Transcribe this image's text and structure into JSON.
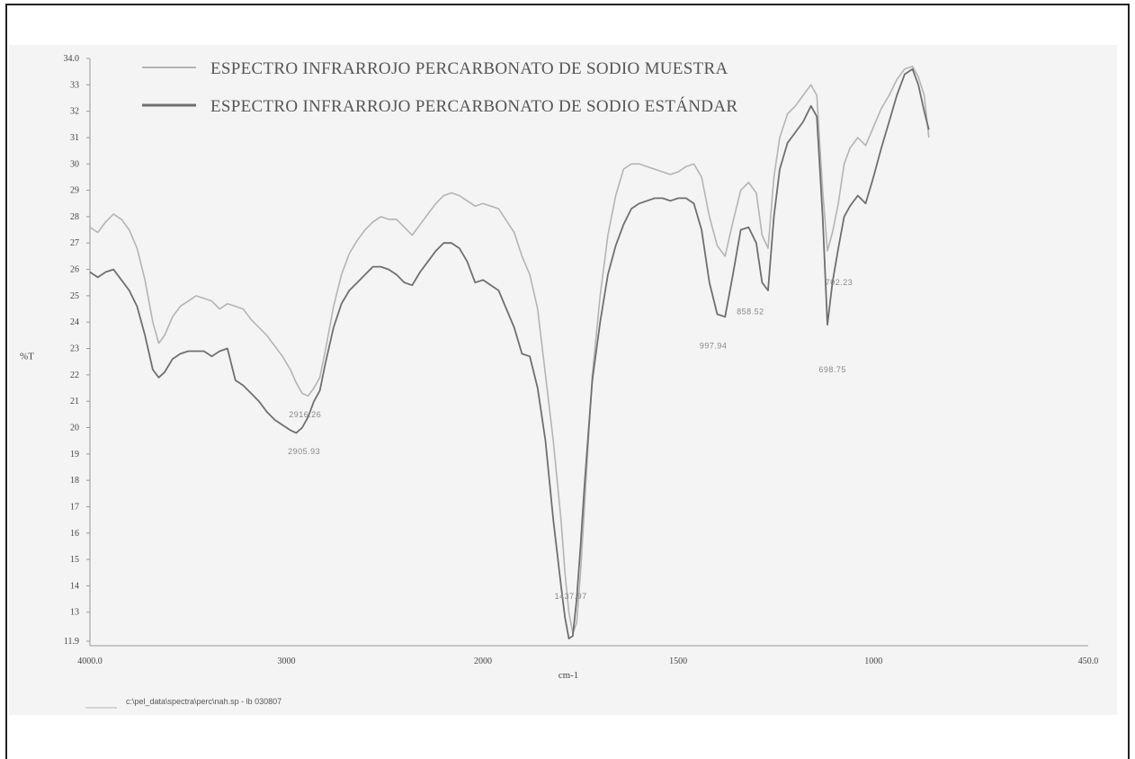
{
  "chart_data": {
    "type": "line",
    "xlabel": "cm-1",
    "ylabel": "%T",
    "xlim": [
      4000.0,
      450.0
    ],
    "ylim": [
      11.9,
      34.0
    ],
    "x_ticks": [
      "4000.0",
      "3000",
      "2000",
      "1500",
      "1000",
      "450.0"
    ],
    "y_ticks": [
      "34.0",
      "33",
      "32",
      "31",
      "30",
      "29",
      "28",
      "27",
      "26",
      "25",
      "24",
      "23",
      "22",
      "21",
      "20",
      "19",
      "18",
      "17",
      "16",
      "15",
      "14",
      "13",
      "11.9"
    ],
    "grid": false,
    "legend_placement": "top-left",
    "series": [
      {
        "name": "ESPECTRO INFRARROJO PERCARBONATO DE SODIO MUESTRA",
        "color": "#b4b4b4",
        "points": [
          [
            4000,
            27.6
          ],
          [
            3960,
            27.4
          ],
          [
            3920,
            27.8
          ],
          [
            3880,
            28.1
          ],
          [
            3840,
            27.9
          ],
          [
            3800,
            27.5
          ],
          [
            3760,
            26.8
          ],
          [
            3720,
            25.6
          ],
          [
            3680,
            24.0
          ],
          [
            3650,
            23.2
          ],
          [
            3620,
            23.5
          ],
          [
            3580,
            24.2
          ],
          [
            3540,
            24.6
          ],
          [
            3500,
            24.8
          ],
          [
            3460,
            25.0
          ],
          [
            3420,
            24.9
          ],
          [
            3380,
            24.8
          ],
          [
            3340,
            24.5
          ],
          [
            3300,
            24.7
          ],
          [
            3260,
            24.6
          ],
          [
            3220,
            24.5
          ],
          [
            3180,
            24.1
          ],
          [
            3140,
            23.8
          ],
          [
            3100,
            23.5
          ],
          [
            3060,
            23.1
          ],
          [
            3020,
            22.7
          ],
          [
            2980,
            22.2
          ],
          [
            2950,
            21.7
          ],
          [
            2920,
            21.3
          ],
          [
            2890,
            21.2
          ],
          [
            2860,
            21.5
          ],
          [
            2830,
            21.9
          ],
          [
            2800,
            23.0
          ],
          [
            2760,
            24.6
          ],
          [
            2720,
            25.8
          ],
          [
            2680,
            26.6
          ],
          [
            2640,
            27.1
          ],
          [
            2600,
            27.5
          ],
          [
            2560,
            27.8
          ],
          [
            2520,
            28.0
          ],
          [
            2480,
            27.9
          ],
          [
            2440,
            27.9
          ],
          [
            2400,
            27.6
          ],
          [
            2360,
            27.3
          ],
          [
            2320,
            27.7
          ],
          [
            2280,
            28.1
          ],
          [
            2240,
            28.5
          ],
          [
            2200,
            28.8
          ],
          [
            2160,
            28.9
          ],
          [
            2120,
            28.8
          ],
          [
            2080,
            28.6
          ],
          [
            2040,
            28.4
          ],
          [
            2000,
            28.5
          ],
          [
            1960,
            28.3
          ],
          [
            1920,
            27.4
          ],
          [
            1900,
            26.5
          ],
          [
            1880,
            25.8
          ],
          [
            1860,
            24.5
          ],
          [
            1840,
            22.0
          ],
          [
            1820,
            19.5
          ],
          [
            1800,
            16.5
          ],
          [
            1790,
            14.5
          ],
          [
            1780,
            13.0
          ],
          [
            1770,
            12.2
          ],
          [
            1760,
            12.6
          ],
          [
            1750,
            14.5
          ],
          [
            1740,
            17.0
          ],
          [
            1730,
            19.5
          ],
          [
            1720,
            22.0
          ],
          [
            1700,
            25.0
          ],
          [
            1680,
            27.3
          ],
          [
            1660,
            28.8
          ],
          [
            1640,
            29.8
          ],
          [
            1620,
            30.0
          ],
          [
            1600,
            30.0
          ],
          [
            1580,
            29.9
          ],
          [
            1560,
            29.8
          ],
          [
            1540,
            29.7
          ],
          [
            1520,
            29.6
          ],
          [
            1500,
            29.7
          ],
          [
            1480,
            29.9
          ],
          [
            1460,
            30.0
          ],
          [
            1440,
            29.5
          ],
          [
            1420,
            28.0
          ],
          [
            1400,
            26.9
          ],
          [
            1380,
            26.5
          ],
          [
            1360,
            27.8
          ],
          [
            1340,
            29.0
          ],
          [
            1320,
            29.3
          ],
          [
            1300,
            28.9
          ],
          [
            1285,
            27.3
          ],
          [
            1270,
            26.8
          ],
          [
            1255,
            29.5
          ],
          [
            1240,
            31.0
          ],
          [
            1220,
            31.9
          ],
          [
            1200,
            32.2
          ],
          [
            1180,
            32.6
          ],
          [
            1160,
            33.0
          ],
          [
            1145,
            32.6
          ],
          [
            1130,
            29.0
          ],
          [
            1118,
            26.7
          ],
          [
            1105,
            27.4
          ],
          [
            1090,
            28.5
          ],
          [
            1075,
            30.0
          ],
          [
            1060,
            30.6
          ],
          [
            1040,
            31.0
          ],
          [
            1020,
            30.7
          ],
          [
            1000,
            31.4
          ],
          [
            980,
            32.1
          ],
          [
            960,
            32.6
          ],
          [
            940,
            33.2
          ],
          [
            920,
            33.6
          ],
          [
            900,
            33.7
          ],
          [
            885,
            33.3
          ],
          [
            870,
            32.6
          ],
          [
            858,
            31.0
          ]
        ]
      },
      {
        "name": "ESPECTRO INFRARROJO PERCARBONATO DE SODIO ESTÁNDAR",
        "color": "#6f6f6f",
        "points": [
          [
            4000,
            25.9
          ],
          [
            3960,
            25.7
          ],
          [
            3920,
            25.9
          ],
          [
            3880,
            26.0
          ],
          [
            3840,
            25.6
          ],
          [
            3800,
            25.2
          ],
          [
            3760,
            24.6
          ],
          [
            3720,
            23.5
          ],
          [
            3680,
            22.2
          ],
          [
            3650,
            21.9
          ],
          [
            3620,
            22.1
          ],
          [
            3580,
            22.6
          ],
          [
            3540,
            22.8
          ],
          [
            3500,
            22.9
          ],
          [
            3460,
            22.9
          ],
          [
            3420,
            22.9
          ],
          [
            3380,
            22.7
          ],
          [
            3340,
            22.9
          ],
          [
            3300,
            23.0
          ],
          [
            3260,
            21.8
          ],
          [
            3220,
            21.6
          ],
          [
            3180,
            21.3
          ],
          [
            3140,
            21.0
          ],
          [
            3100,
            20.6
          ],
          [
            3060,
            20.3
          ],
          [
            3020,
            20.1
          ],
          [
            2980,
            19.9
          ],
          [
            2950,
            19.8
          ],
          [
            2920,
            20.0
          ],
          [
            2890,
            20.4
          ],
          [
            2860,
            21.0
          ],
          [
            2830,
            21.4
          ],
          [
            2800,
            22.5
          ],
          [
            2760,
            23.8
          ],
          [
            2720,
            24.7
          ],
          [
            2680,
            25.2
          ],
          [
            2640,
            25.5
          ],
          [
            2600,
            25.8
          ],
          [
            2560,
            26.1
          ],
          [
            2520,
            26.1
          ],
          [
            2480,
            26.0
          ],
          [
            2440,
            25.8
          ],
          [
            2400,
            25.5
          ],
          [
            2360,
            25.4
          ],
          [
            2320,
            25.9
          ],
          [
            2280,
            26.3
          ],
          [
            2240,
            26.7
          ],
          [
            2200,
            27.0
          ],
          [
            2160,
            27.0
          ],
          [
            2120,
            26.8
          ],
          [
            2080,
            26.3
          ],
          [
            2040,
            25.5
          ],
          [
            2000,
            25.6
          ],
          [
            1960,
            25.2
          ],
          [
            1920,
            23.8
          ],
          [
            1900,
            22.8
          ],
          [
            1880,
            22.7
          ],
          [
            1860,
            21.5
          ],
          [
            1840,
            19.5
          ],
          [
            1820,
            16.5
          ],
          [
            1800,
            14.0
          ],
          [
            1790,
            12.8
          ],
          [
            1780,
            12.0
          ],
          [
            1770,
            12.1
          ],
          [
            1760,
            13.5
          ],
          [
            1750,
            15.5
          ],
          [
            1740,
            17.8
          ],
          [
            1730,
            19.8
          ],
          [
            1720,
            21.8
          ],
          [
            1700,
            24.0
          ],
          [
            1680,
            25.8
          ],
          [
            1660,
            26.9
          ],
          [
            1640,
            27.7
          ],
          [
            1620,
            28.3
          ],
          [
            1600,
            28.5
          ],
          [
            1580,
            28.6
          ],
          [
            1560,
            28.7
          ],
          [
            1540,
            28.7
          ],
          [
            1520,
            28.6
          ],
          [
            1500,
            28.7
          ],
          [
            1480,
            28.7
          ],
          [
            1460,
            28.5
          ],
          [
            1440,
            27.5
          ],
          [
            1420,
            25.5
          ],
          [
            1400,
            24.3
          ],
          [
            1380,
            24.2
          ],
          [
            1360,
            25.8
          ],
          [
            1340,
            27.5
          ],
          [
            1320,
            27.6
          ],
          [
            1300,
            27.0
          ],
          [
            1285,
            25.5
          ],
          [
            1270,
            25.2
          ],
          [
            1255,
            28.0
          ],
          [
            1240,
            29.8
          ],
          [
            1220,
            30.8
          ],
          [
            1200,
            31.2
          ],
          [
            1180,
            31.6
          ],
          [
            1160,
            32.2
          ],
          [
            1145,
            31.8
          ],
          [
            1130,
            28.0
          ],
          [
            1118,
            23.9
          ],
          [
            1105,
            25.5
          ],
          [
            1090,
            26.8
          ],
          [
            1075,
            28.0
          ],
          [
            1060,
            28.4
          ],
          [
            1040,
            28.8
          ],
          [
            1020,
            28.5
          ],
          [
            1000,
            29.5
          ],
          [
            980,
            30.6
          ],
          [
            960,
            31.6
          ],
          [
            940,
            32.6
          ],
          [
            920,
            33.4
          ],
          [
            900,
            33.6
          ],
          [
            885,
            33.0
          ],
          [
            870,
            32.0
          ],
          [
            858,
            31.3
          ]
        ]
      }
    ],
    "peak_labels": [
      {
        "text": "2916.26",
        "x": 2905,
        "y": 20.4
      },
      {
        "text": "2905.93",
        "x": 2910,
        "y": 19.0
      },
      {
        "text": "1437.97",
        "x": 1775,
        "y": 13.5
      },
      {
        "text": "997.94",
        "x": 1410,
        "y": 23.0
      },
      {
        "text": "858.52",
        "x": 1315,
        "y": 24.3
      },
      {
        "text": "702.23",
        "x": 1088,
        "y": 25.4
      },
      {
        "text": "698.75",
        "x": 1105,
        "y": 22.1
      }
    ],
    "file_label": "c:\\pel_data\\spectra\\perc\\nah.sp - lb 030807"
  }
}
